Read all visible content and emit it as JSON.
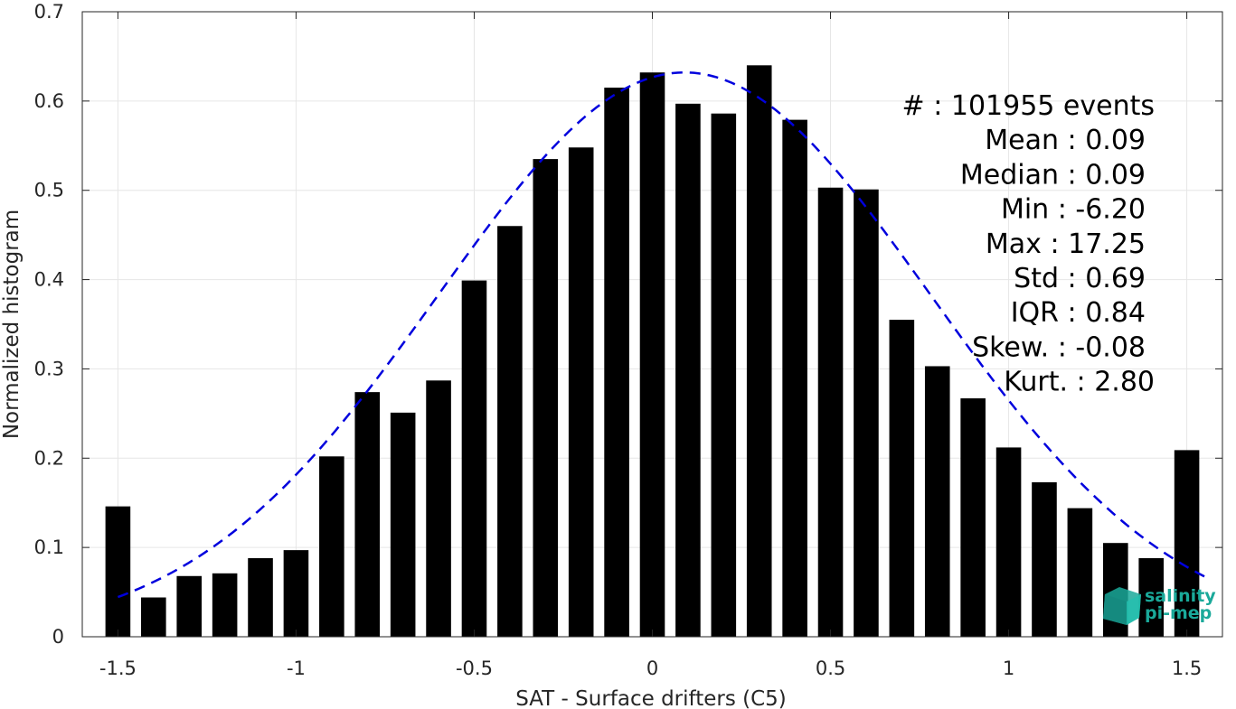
{
  "chart_data": {
    "type": "bar",
    "xlabel": "SAT - Surface drifters (C5)",
    "ylabel": "Normalized histogram",
    "xlim": [
      -1.6,
      1.6
    ],
    "ylim": [
      0,
      0.7
    ],
    "xticks": [
      -1.5,
      -1,
      -0.5,
      0,
      0.5,
      1,
      1.5
    ],
    "xtick_labels": [
      "-1.5",
      "-1",
      "-0.5",
      "0",
      "0.5",
      "1",
      "1.5"
    ],
    "yticks": [
      0,
      0.1,
      0.2,
      0.3,
      0.4,
      0.5,
      0.6,
      0.7
    ],
    "ytick_labels": [
      "0",
      "0.1",
      "0.2",
      "0.3",
      "0.4",
      "0.5",
      "0.6",
      "0.7"
    ],
    "grid": true,
    "bar_color": "#000000",
    "bars": {
      "x": [
        -1.5,
        -1.4,
        -1.3,
        -1.2,
        -1.1,
        -1.0,
        -0.9,
        -0.8,
        -0.7,
        -0.6,
        -0.5,
        -0.4,
        -0.3,
        -0.2,
        -0.1,
        0.0,
        0.1,
        0.2,
        0.3,
        0.4,
        0.5,
        0.6,
        0.7,
        0.8,
        0.9,
        1.0,
        1.1,
        1.2,
        1.3,
        1.4,
        1.5
      ],
      "values": [
        0.146,
        0.044,
        0.068,
        0.071,
        0.088,
        0.097,
        0.202,
        0.274,
        0.251,
        0.287,
        0.399,
        0.46,
        0.535,
        0.548,
        0.615,
        0.632,
        0.597,
        0.586,
        0.64,
        0.579,
        0.503,
        0.501,
        0.355,
        0.303,
        0.267,
        0.212,
        0.173,
        0.144,
        0.105,
        0.088,
        0.209
      ]
    },
    "fit_curve": {
      "style": "dashed",
      "color": "#0000dd",
      "x_range": [
        -1.5,
        1.55
      ],
      "mean": 0.09,
      "std": 0.69,
      "peak": 0.632
    },
    "stats": [
      {
        "label": "#  ",
        "value": "101955 events"
      },
      {
        "label": "Mean",
        "value": "0.09"
      },
      {
        "label": "Median",
        "value": "0.09"
      },
      {
        "label": "Min",
        "value": "-6.20"
      },
      {
        "label": "Max",
        "value": "17.25"
      },
      {
        "label": "Std",
        "value": "0.69"
      },
      {
        "label": "IQR",
        "value": "0.84"
      },
      {
        "label": "Skew.",
        "value": "-0.08"
      },
      {
        "label": "Kurt.",
        "value": "2.80"
      }
    ]
  },
  "logo": {
    "line1": "salinity",
    "line2": "pi-mep",
    "color": "#1aa99a"
  }
}
